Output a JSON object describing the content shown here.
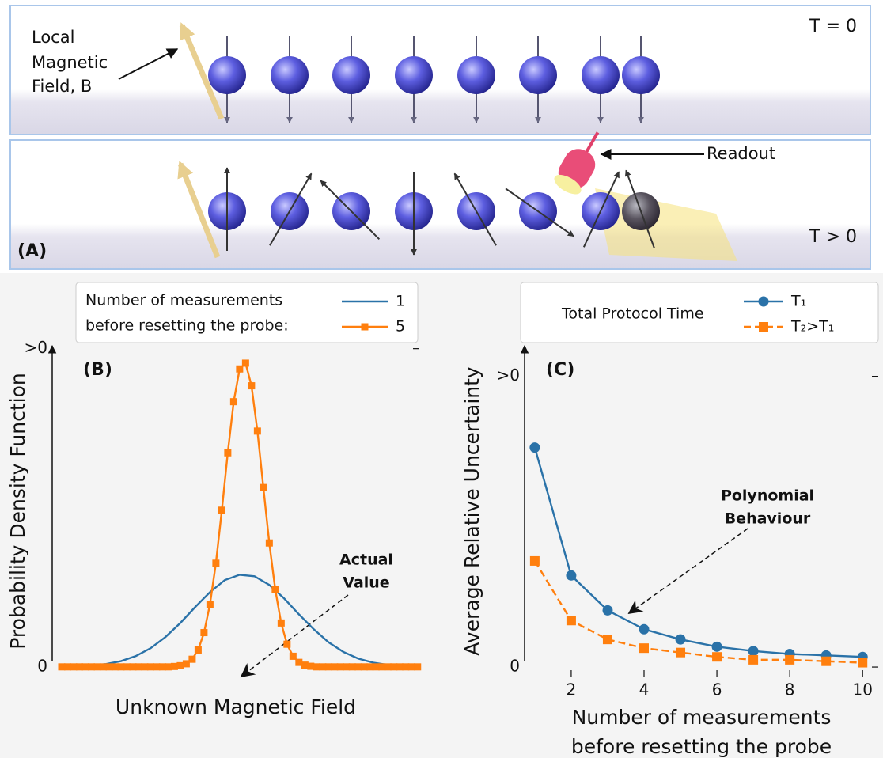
{
  "panel_a": {
    "label": "(A)",
    "field_label": [
      "Local",
      "Magnetic",
      "Field, B"
    ],
    "top_time": "T = 0",
    "bottom_time": "T > 0",
    "readout": "Readout"
  },
  "chart_data": [
    {
      "type": "line",
      "panel_label": "(B)",
      "legend_title": [
        "Number of measurements",
        "before resetting the probe:"
      ],
      "ylabel": "Probability Density Function",
      "xlabel": [
        "Unknown Magnetic Field"
      ],
      "xlim": [
        -3.16,
        3.03
      ],
      "ylim": [
        -0.2,
        6.66
      ],
      "yticks": [
        0,
        {
          "value": 6.6,
          "label": ">0"
        }
      ],
      "annotation": [
        "Actual",
        "Value"
      ],
      "series": [
        {
          "name": "1",
          "color": "#2a72a8",
          "marker": null,
          "linestyle": "solid",
          "x": [
            -3,
            -2.75,
            -2.5,
            -2.25,
            -2,
            -1.75,
            -1.5,
            -1.25,
            -1,
            -0.75,
            -0.5,
            -0.25,
            0,
            0.25,
            0.5,
            0.75,
            1,
            1.25,
            1.5,
            1.75,
            2,
            2.25,
            2.5,
            2.75,
            3
          ],
          "values": [
            0.004,
            0.011,
            0.026,
            0.059,
            0.119,
            0.224,
            0.388,
            0.62,
            0.91,
            1.24,
            1.55,
            1.8,
            1.91,
            1.88,
            1.7,
            1.42,
            1.09,
            0.78,
            0.51,
            0.31,
            0.171,
            0.088,
            0.042,
            0.018,
            0.007
          ]
        },
        {
          "name": "5",
          "color": "#ff7f0e",
          "marker": "square",
          "linestyle": "solid",
          "x": [
            -3,
            -2.9,
            -2.8,
            -2.7,
            -2.6,
            -2.5,
            -2.4,
            -2.3,
            -2.2,
            -2.1,
            -2,
            -1.9,
            -1.8,
            -1.7,
            -1.6,
            -1.5,
            -1.4,
            -1.3,
            -1.2,
            -1.1,
            -1,
            -0.9,
            -0.8,
            -0.7,
            -0.6,
            -0.5,
            -0.4,
            -0.3,
            -0.2,
            -0.1,
            0,
            0.1,
            0.2,
            0.3,
            0.4,
            0.5,
            0.6,
            0.7,
            0.8,
            0.9,
            1,
            1.1,
            1.2,
            1.3,
            1.4,
            1.5,
            1.6,
            1.7,
            1.8,
            1.9,
            2,
            2.1,
            2.2,
            2.3,
            2.4,
            2.5,
            2.6,
            2.7,
            2.8,
            2.9,
            3
          ],
          "values": [
            0,
            0,
            0,
            0,
            0,
            0,
            0,
            0,
            0,
            0,
            0,
            0,
            0,
            0,
            0,
            0,
            0,
            0,
            0,
            0.008,
            0.024,
            0.064,
            0.158,
            0.35,
            0.71,
            1.3,
            2.15,
            3.25,
            4.44,
            5.5,
            6.18,
            6.3,
            5.83,
            4.89,
            3.72,
            2.57,
            1.61,
            0.91,
            0.47,
            0.22,
            0.093,
            0.036,
            0.012,
            0,
            0,
            0,
            0,
            0,
            0,
            0,
            0,
            0,
            0,
            0,
            0,
            0,
            0,
            0,
            0,
            0,
            0
          ]
        }
      ]
    },
    {
      "type": "line",
      "panel_label": "(C)",
      "legend_title": [
        "Total Protocol Time"
      ],
      "ylabel": "Average Relative Uncertainty",
      "xlabel": [
        "Number of measurements",
        "before resetting the probe"
      ],
      "xlim": [
        0.72,
        10.43
      ],
      "ylim": [
        -0.065,
        2.21
      ],
      "xticks": [
        2,
        4,
        6,
        8,
        10
      ],
      "yticks": [
        0,
        {
          "value": 2,
          "label": ">0"
        }
      ],
      "annotation": [
        "Polynomial",
        "Behaviour"
      ],
      "x": [
        1,
        2,
        3,
        4,
        5,
        6,
        7,
        8,
        9,
        10
      ],
      "series": [
        {
          "name": "T₁",
          "color": "#2a72a8",
          "marker": "circle",
          "linestyle": "solid",
          "values": [
            1.51,
            0.63,
            0.39,
            0.26,
            0.19,
            0.14,
            0.11,
            0.09,
            0.08,
            0.07
          ]
        },
        {
          "name": "T₂>T₁",
          "color": "#ff7f0e",
          "marker": "square",
          "linestyle": "dashed",
          "values": [
            0.73,
            0.32,
            0.19,
            0.13,
            0.1,
            0.07,
            0.05,
            0.05,
            0.04,
            0.03
          ]
        }
      ]
    }
  ]
}
